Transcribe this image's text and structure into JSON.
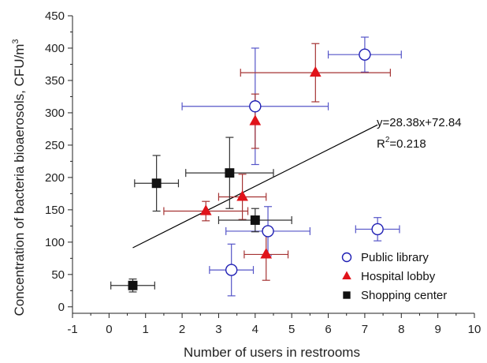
{
  "chart_data": {
    "type": "scatter",
    "xlabel": "Number of users in restrooms",
    "ylabel_main": "Concentration of bacteria bioaerosols, CFU/m",
    "ylabel_sup": "3",
    "xlim": [
      -1,
      10
    ],
    "ylim": [
      -10,
      450
    ],
    "xticks": [
      "-1",
      "0",
      "1",
      "2",
      "3",
      "4",
      "5",
      "6",
      "7",
      "8",
      "9",
      "10"
    ],
    "yticks": [
      "0",
      "50",
      "100",
      "150",
      "200",
      "250",
      "300",
      "350",
      "400",
      "450"
    ],
    "series": [
      {
        "name": "Public library",
        "marker": "open-circle",
        "color": "#1f1fb4",
        "errcolor": "#5555c8",
        "points": [
          {
            "x": 7.0,
            "y": 390,
            "xerr": 1.0,
            "yerr": 27
          },
          {
            "x": 4.0,
            "y": 310,
            "xerr": 2.0,
            "yerr": 90
          },
          {
            "x": 4.35,
            "y": 117,
            "xerr": 1.15,
            "yerr": 38
          },
          {
            "x": 7.35,
            "y": 120,
            "xerr": 0.6,
            "yerr": 18
          },
          {
            "x": 3.35,
            "y": 57,
            "xerr": 0.6,
            "yerr": 40
          }
        ]
      },
      {
        "name": "Hospital lobby",
        "marker": "triangle",
        "color": "#e0131a",
        "errcolor": "#a53333",
        "points": [
          {
            "x": 5.65,
            "y": 362,
            "xerr": 2.05,
            "yerr": 45
          },
          {
            "x": 4.0,
            "y": 287,
            "xerr": 0.0,
            "yerr": 42
          },
          {
            "x": 3.65,
            "y": 170,
            "xerr": 0.65,
            "yerr": 35
          },
          {
            "x": 2.65,
            "y": 148,
            "xerr": 1.15,
            "yerr": 15
          },
          {
            "x": 4.3,
            "y": 81,
            "xerr": 0.6,
            "yerr": 40
          }
        ]
      },
      {
        "name": "Shopping center",
        "marker": "square",
        "color": "#111111",
        "errcolor": "#333333",
        "points": [
          {
            "x": 1.3,
            "y": 191,
            "xerr": 0.6,
            "yerr": 43
          },
          {
            "x": 3.3,
            "y": 207,
            "xerr": 1.2,
            "yerr": 55
          },
          {
            "x": 4.0,
            "y": 134,
            "xerr": 1.0,
            "yerr": 18
          },
          {
            "x": 0.65,
            "y": 33,
            "xerr": 0.6,
            "yerr": 10
          }
        ]
      }
    ],
    "trendline": {
      "x_start": 0.65,
      "x_end": 7.35,
      "slope": 28.38,
      "intercept": 72.84
    },
    "annotation_equation": "y=28.38x+72.84",
    "annotation_r2_base": "R",
    "annotation_r2_sup": "2",
    "annotation_r2_value": "=0.218",
    "legend_placement": "bottom-right",
    "grid": false
  }
}
